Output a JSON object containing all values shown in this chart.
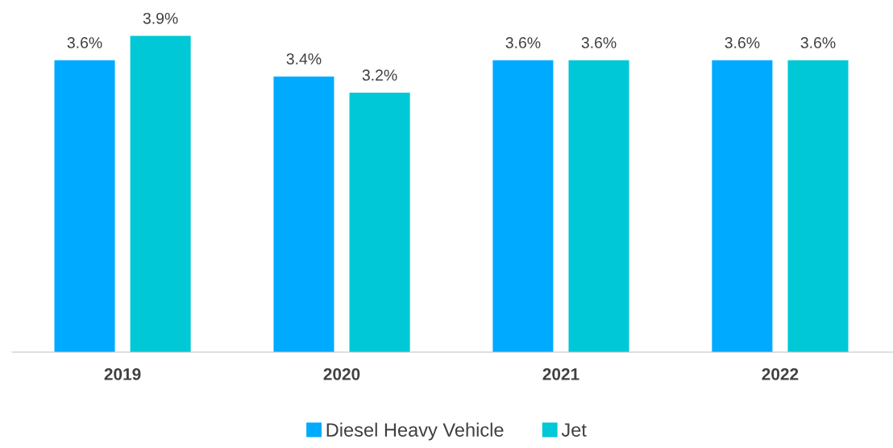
{
  "chart_data": {
    "type": "bar",
    "categories": [
      "2019",
      "2020",
      "2021",
      "2022"
    ],
    "series": [
      {
        "name": "Diesel Heavy Vehicle",
        "color": "#00aaff",
        "values": [
          3.6,
          3.4,
          3.6,
          3.6
        ],
        "value_labels": [
          "3.6%",
          "3.4%",
          "3.6%",
          "3.6%"
        ]
      },
      {
        "name": "Jet",
        "color": "#00c8d6",
        "values": [
          3.9,
          3.2,
          3.6,
          3.6
        ],
        "value_labels": [
          "3.9%",
          "3.2%",
          "3.6%",
          "3.6%"
        ]
      }
    ],
    "tick_labels": "x",
    "grid": false,
    "legend": "bottom"
  }
}
